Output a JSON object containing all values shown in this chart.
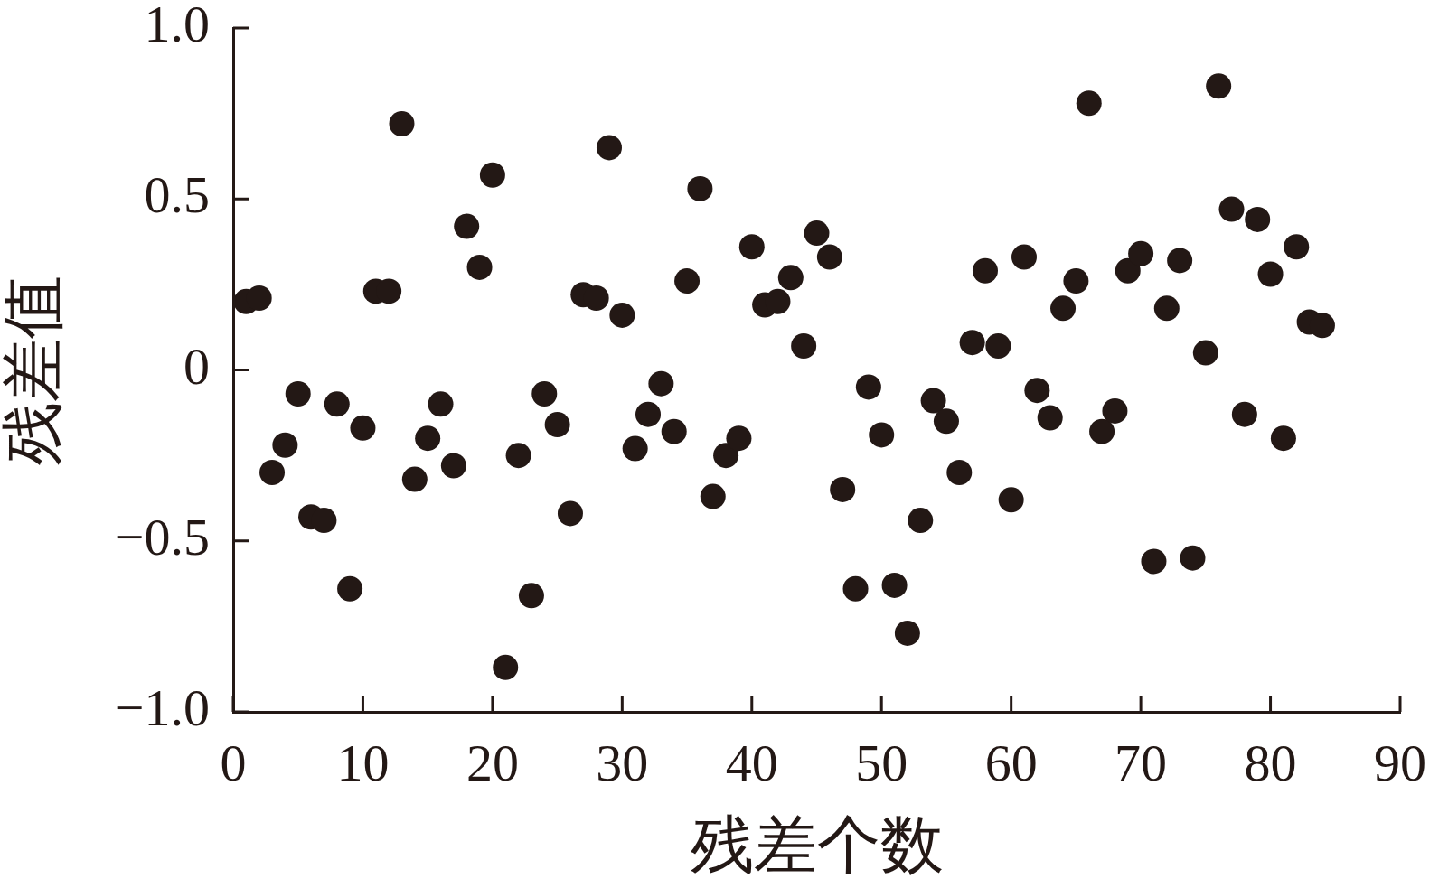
{
  "chart_data": {
    "type": "scatter",
    "xlabel": "残差个数",
    "ylabel": "残差值",
    "x": [
      1,
      2,
      3,
      4,
      5,
      6,
      7,
      8,
      9,
      10,
      11,
      12,
      13,
      14,
      15,
      16,
      17,
      18,
      19,
      20,
      21,
      22,
      23,
      24,
      25,
      26,
      27,
      28,
      29,
      30,
      31,
      32,
      33,
      34,
      35,
      36,
      37,
      38,
      39,
      40,
      41,
      42,
      43,
      44,
      45,
      46,
      47,
      48,
      49,
      50,
      51,
      52,
      53,
      54,
      55,
      56,
      57,
      58,
      59,
      60,
      61,
      62,
      63,
      64,
      65,
      66,
      67,
      68,
      69,
      70,
      71,
      72,
      73,
      74,
      75,
      76,
      77,
      78,
      79,
      80,
      81,
      82,
      83,
      84
    ],
    "series": [
      {
        "color": "#231815",
        "values": [
          0.2,
          0.21,
          -0.3,
          -0.22,
          -0.07,
          -0.43,
          -0.44,
          -0.1,
          -0.64,
          -0.17,
          0.23,
          0.23,
          0.72,
          -0.32,
          -0.2,
          -0.1,
          -0.28,
          0.42,
          0.3,
          0.57,
          -0.87,
          -0.25,
          -0.66,
          -0.07,
          -0.16,
          -0.42,
          0.22,
          0.21,
          0.65,
          0.16,
          -0.23,
          -0.13,
          -0.04,
          -0.18,
          0.26,
          0.53,
          -0.37,
          -0.25,
          -0.2,
          0.36,
          0.19,
          0.2,
          0.27,
          0.07,
          0.4,
          0.33,
          -0.35,
          -0.64,
          -0.05,
          -0.19,
          -0.63,
          -0.77,
          -0.44,
          -0.09,
          -0.15,
          -0.3,
          0.08,
          0.29,
          0.07,
          -0.38,
          0.33,
          -0.06,
          -0.14,
          0.18,
          0.26,
          0.78,
          -0.18,
          -0.12,
          0.29,
          0.34,
          -0.56,
          0.18,
          0.32,
          -0.55,
          0.05,
          0.83,
          0.47,
          -0.13,
          0.44,
          0.28,
          -0.2,
          0.36,
          0.14,
          0.13
        ]
      }
    ],
    "xlim": [
      0,
      90
    ],
    "xticks": [
      0,
      10,
      20,
      30,
      40,
      50,
      60,
      70,
      80,
      90
    ],
    "ylim": [
      -1,
      1
    ],
    "yticks": [
      {
        "value": -1,
        "label": "−1.0"
      },
      {
        "value": -0.5,
        "label": "−0.5"
      },
      0,
      0.5,
      {
        "value": 1,
        "label": "1.0"
      }
    ],
    "grid": false,
    "legend": false,
    "marker": "circle"
  }
}
